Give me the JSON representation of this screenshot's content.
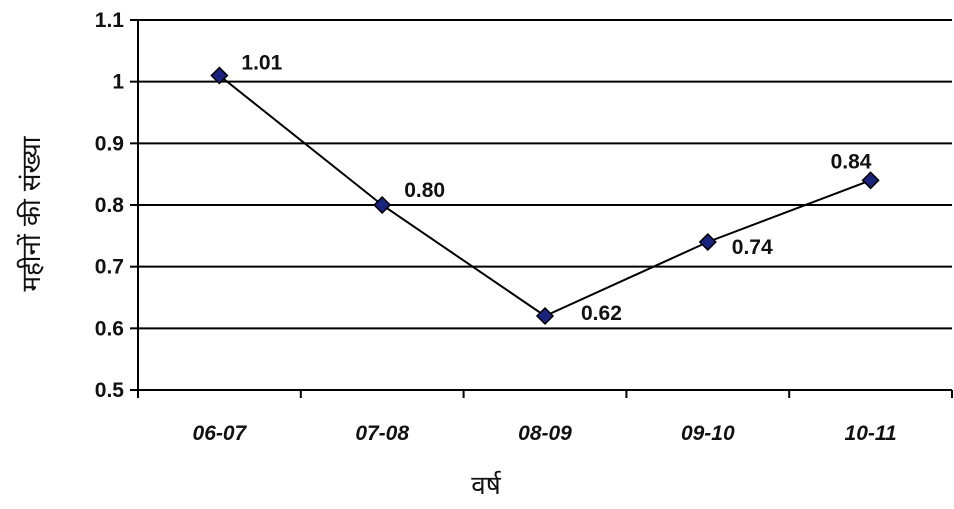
{
  "chart_data": {
    "type": "line",
    "title": "",
    "xlabel": "वर्ष",
    "ylabel": "महीनों की संख्या",
    "categories": [
      "06-07",
      "07-08",
      "08-09",
      "09-10",
      "10-11"
    ],
    "series": [
      {
        "values": [
          1.01,
          0.8,
          0.62,
          0.74,
          0.84
        ],
        "labels": [
          "1.01",
          "0.80",
          "0.62",
          "0.74",
          "0.84"
        ],
        "line_color": "#000000",
        "marker_color": "#1a237e"
      }
    ],
    "ylim": [
      0.5,
      1.1
    ],
    "yticks": [
      "0.5",
      "0.6",
      "0.7",
      "0.8",
      "0.9",
      "1",
      "1.1"
    ],
    "grid": true,
    "legend": "none"
  }
}
